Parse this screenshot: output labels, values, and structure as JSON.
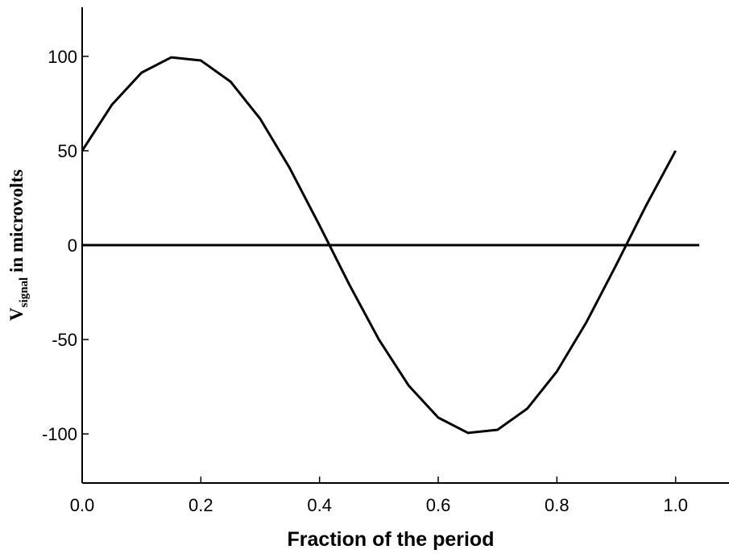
{
  "chart_data": {
    "type": "line",
    "x_label": "Fraction of the period",
    "y_label": {
      "main": "V",
      "subscript": "signal",
      "rest": " in microvolts"
    },
    "x": [
      0,
      0.05,
      0.1,
      0.15,
      0.2,
      0.25,
      0.3,
      0.35,
      0.4,
      0.45,
      0.5,
      0.55,
      0.6,
      0.65,
      0.7,
      0.75,
      0.8,
      0.85,
      0.9,
      0.95,
      1.0
    ],
    "series": [
      {
        "color": "#000000",
        "values": [
          50,
          74.31,
          91.35,
          99.45,
          97.81,
          86.6,
          66.91,
          40.67,
          10.45,
          -20.79,
          -50,
          -74.31,
          -91.35,
          -99.45,
          -97.81,
          -86.6,
          -66.91,
          -40.67,
          -10.45,
          20.79,
          50
        ]
      }
    ],
    "xlim": [
      0,
      1.09
    ],
    "ylim": [
      -126,
      126
    ],
    "xticks": [
      {
        "value": 0,
        "label": "0.0"
      },
      {
        "value": 0.2,
        "label": "0.2"
      },
      {
        "value": 0.4,
        "label": "0.4"
      },
      {
        "value": 0.6,
        "label": "0.6"
      },
      {
        "value": 0.8,
        "label": "0.8"
      },
      {
        "value": 1.0,
        "label": "1.0"
      }
    ],
    "yticks": [
      -100,
      -50,
      0,
      50,
      100
    ],
    "hline": {
      "y": 0,
      "xmax": 1.04
    },
    "grid": false
  }
}
